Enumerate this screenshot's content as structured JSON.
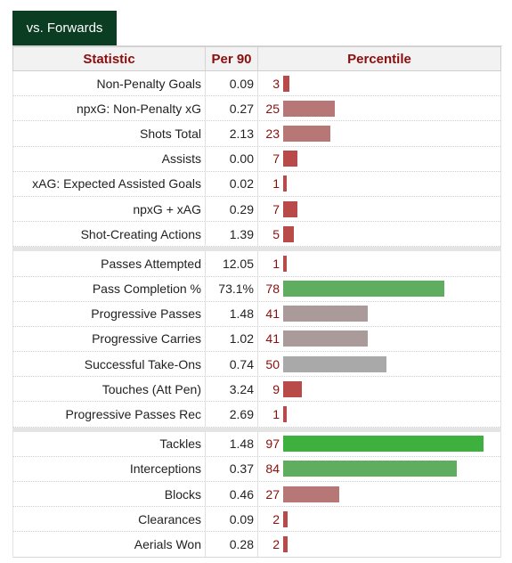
{
  "tab": {
    "label": "vs. Forwards"
  },
  "headers": {
    "statistic": "Statistic",
    "per90": "Per 90",
    "percentile": "Percentile"
  },
  "colors": {
    "header_text": "#8b0d0d",
    "tab_bg": "#0b3d22",
    "bar_low": "#b84a4a",
    "bar_mid_low": "#b87777",
    "bar_neutral": "#aa9a9a",
    "bar_avg": "#a9a9a9",
    "bar_good": "#5fae5f",
    "bar_elite": "#3db03d"
  },
  "groups": [
    {
      "rows": [
        {
          "stat": "Non-Penalty Goals",
          "per90": "0.09",
          "percentile": 3
        },
        {
          "stat": "npxG: Non-Penalty xG",
          "per90": "0.27",
          "percentile": 25
        },
        {
          "stat": "Shots Total",
          "per90": "2.13",
          "percentile": 23
        },
        {
          "stat": "Assists",
          "per90": "0.00",
          "percentile": 7
        },
        {
          "stat": "xAG: Expected Assisted Goals",
          "per90": "0.02",
          "percentile": 1
        },
        {
          "stat": "npxG + xAG",
          "per90": "0.29",
          "percentile": 7
        },
        {
          "stat": "Shot-Creating Actions",
          "per90": "1.39",
          "percentile": 5
        }
      ]
    },
    {
      "rows": [
        {
          "stat": "Passes Attempted",
          "per90": "12.05",
          "percentile": 1
        },
        {
          "stat": "Pass Completion %",
          "per90": "73.1%",
          "percentile": 78
        },
        {
          "stat": "Progressive Passes",
          "per90": "1.48",
          "percentile": 41
        },
        {
          "stat": "Progressive Carries",
          "per90": "1.02",
          "percentile": 41
        },
        {
          "stat": "Successful Take-Ons",
          "per90": "0.74",
          "percentile": 50
        },
        {
          "stat": "Touches (Att Pen)",
          "per90": "3.24",
          "percentile": 9
        },
        {
          "stat": "Progressive Passes Rec",
          "per90": "2.69",
          "percentile": 1
        }
      ]
    },
    {
      "rows": [
        {
          "stat": "Tackles",
          "per90": "1.48",
          "percentile": 97
        },
        {
          "stat": "Interceptions",
          "per90": "0.37",
          "percentile": 84
        },
        {
          "stat": "Blocks",
          "per90": "0.46",
          "percentile": 27
        },
        {
          "stat": "Clearances",
          "per90": "0.09",
          "percentile": 2
        },
        {
          "stat": "Aerials Won",
          "per90": "0.28",
          "percentile": 2
        }
      ]
    }
  ]
}
